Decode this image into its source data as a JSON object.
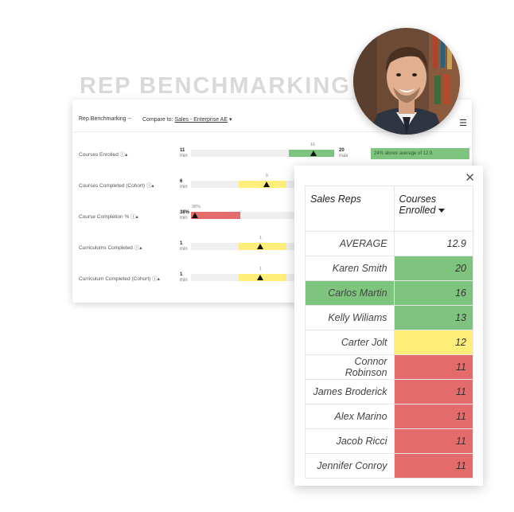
{
  "hero": {
    "title": "REP BENCHMARKING"
  },
  "panel": {
    "title": "Rep Benchmarking --",
    "compare_label": "Compare to:",
    "compare_value": "Sales - Enterprise AE",
    "menu_icon": "hamburger-menu-icon",
    "metrics": [
      {
        "label": "Courses Enrolled",
        "min": "11",
        "min_sub": "min",
        "max": "20",
        "max_sub": "max",
        "value_label": "16",
        "color": "#7ec47e",
        "badge": "24% above average of 12.9"
      },
      {
        "label": "Courses Completed (Cohort)",
        "min": "6",
        "min_sub": "min",
        "value_label": "6",
        "color": "#ffef7a"
      },
      {
        "label": "Course Completion %",
        "min": "38%",
        "min_sub": "min",
        "value_label": "38%",
        "color": "#e46b6b"
      },
      {
        "label": "Curriculums Completed",
        "min": "1",
        "min_sub": "min",
        "value_label": "1",
        "color": "#ffef7a"
      },
      {
        "label": "Curriculum Completed (Cohort)",
        "min": "1",
        "min_sub": "min",
        "value_label": "1",
        "color": "#ffef7a"
      }
    ]
  },
  "popup": {
    "close_icon": "close-icon",
    "col_reps": "Sales Reps",
    "col_courses": "Courses Enrolled",
    "average": {
      "label": "AVERAGE",
      "value": "12.9"
    },
    "rows": [
      {
        "name": "Karen Smith",
        "value": "20",
        "color": "#7ec47e",
        "name_color": ""
      },
      {
        "name": "Carlos Martin",
        "value": "16",
        "color": "#7ec47e",
        "name_color": "#7ec47e"
      },
      {
        "name": "Kelly Wiliams",
        "value": "13",
        "color": "#7ec47e",
        "name_color": ""
      },
      {
        "name": "Carter Jolt",
        "value": "12",
        "color": "#ffef7a",
        "name_color": ""
      },
      {
        "name": "Connor Robinson",
        "value": "11",
        "color": "#e46b6b",
        "name_color": ""
      },
      {
        "name": "James Broderick",
        "value": "11",
        "color": "#e46b6b",
        "name_color": ""
      },
      {
        "name": "Alex Marino",
        "value": "11",
        "color": "#e46b6b",
        "name_color": ""
      },
      {
        "name": "Jacob Ricci",
        "value": "11",
        "color": "#e46b6b",
        "name_color": ""
      },
      {
        "name": "Jennifer Conroy",
        "value": "11",
        "color": "#e46b6b",
        "name_color": ""
      }
    ]
  }
}
